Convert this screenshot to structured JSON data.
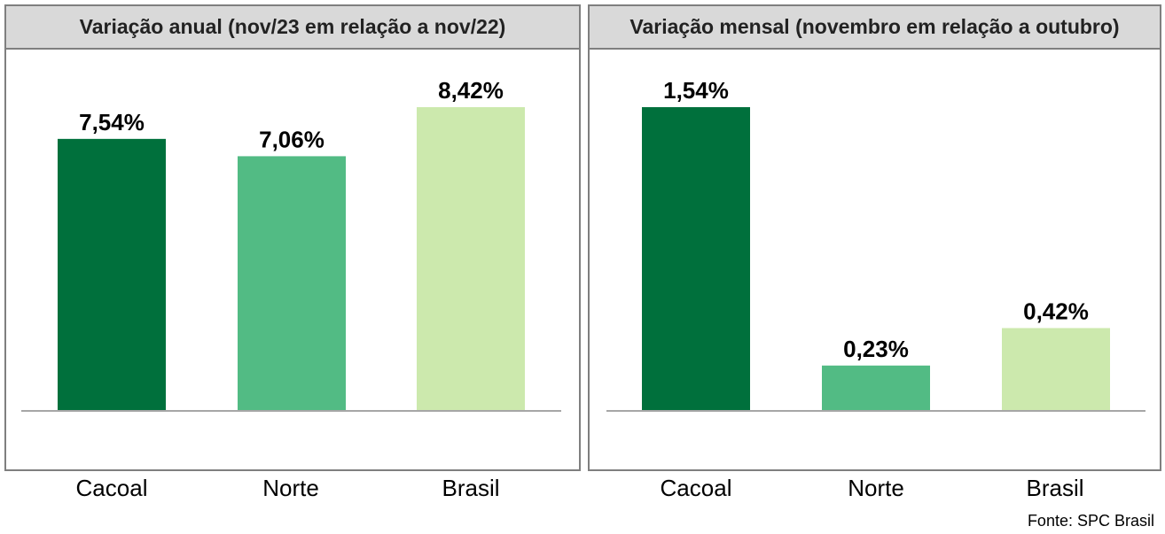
{
  "colors": {
    "cacoal": "#00703c",
    "norte": "#52bb84",
    "brasil": "#cce9ad",
    "axis": "#a6a6a6"
  },
  "source": "Fonte: SPC Brasil",
  "chart_data": [
    {
      "type": "bar",
      "title": "Variação anual (nov/23 em relação a nov/22)",
      "categories": [
        "Cacoal",
        "Norte",
        "Brasil"
      ],
      "values": [
        7.54,
        7.06,
        8.42
      ],
      "value_labels": [
        "7,54%",
        "7,06%",
        "8,42%"
      ],
      "ylim": [
        0,
        8.42
      ]
    },
    {
      "type": "bar",
      "title": "Variação mensal (novembro em relação a outubro)",
      "categories": [
        "Cacoal",
        "Norte",
        "Brasil"
      ],
      "values": [
        1.54,
        0.23,
        0.42
      ],
      "value_labels": [
        "1,54%",
        "0,23%",
        "0,42%"
      ],
      "ylim": [
        0,
        1.54
      ]
    }
  ]
}
